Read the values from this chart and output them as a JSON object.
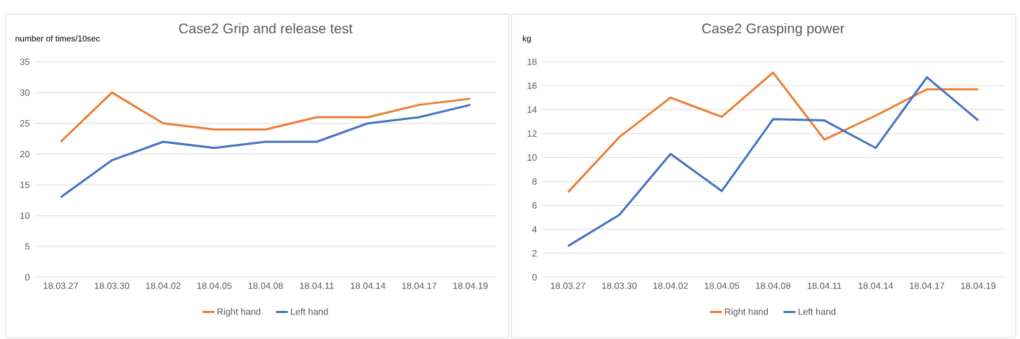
{
  "chart_data": [
    {
      "type": "line",
      "title": "Case2 Grip and release test",
      "ylabel": "number of times/10sec",
      "categories": [
        "18.03.27",
        "18.03.30",
        "18.04.02",
        "18.04.05",
        "18.04.08",
        "18.04.11",
        "18.04.14",
        "18.04.17",
        "18.04.19"
      ],
      "series": [
        {
          "name": "Right hand",
          "color": "#ed7d31",
          "values": [
            22,
            30,
            25,
            24,
            24,
            26,
            26,
            28,
            29
          ]
        },
        {
          "name": "Left hand",
          "color": "#4472c4",
          "values": [
            13,
            19,
            22,
            21,
            22,
            22,
            25,
            26,
            28
          ]
        }
      ],
      "ylim": [
        0,
        35
      ],
      "yticks": [
        0,
        5,
        10,
        15,
        20,
        25,
        30,
        35
      ],
      "grid": "y",
      "legend": "bottom"
    },
    {
      "type": "line",
      "title": "Case2 Grasping power",
      "ylabel": "kg",
      "categories": [
        "18.03.27",
        "18.03.30",
        "18.04.02",
        "18.04.05",
        "18.04.08",
        "18.04.11",
        "18.04.14",
        "18.04.17",
        "18.04.19"
      ],
      "series": [
        {
          "name": "Right hand",
          "color": "#ed7d31",
          "values": [
            7.1,
            11.7,
            15,
            13.4,
            17.1,
            11.5,
            13.5,
            15.7,
            15.7
          ]
        },
        {
          "name": "Left hand",
          "color": "#4472c4",
          "values": [
            2.6,
            5.2,
            10.3,
            7.2,
            13.2,
            13.1,
            10.8,
            16.7,
            13.1
          ]
        }
      ],
      "ylim": [
        0,
        18
      ],
      "yticks": [
        0,
        2,
        4,
        6,
        8,
        10,
        12,
        14,
        16,
        18
      ],
      "grid": "y",
      "legend": "bottom"
    }
  ]
}
